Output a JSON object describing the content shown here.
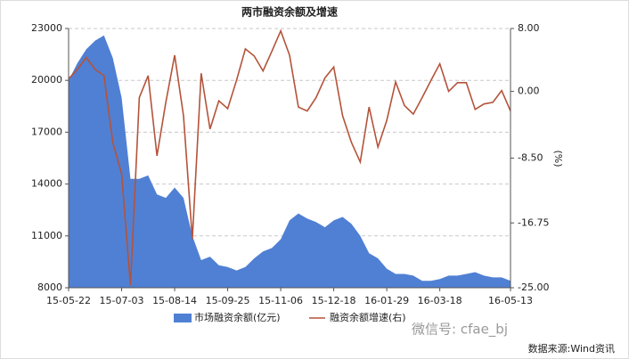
{
  "chart_data": {
    "type": "area-line",
    "title": "两市融资余额及增速",
    "y2label": "(%)",
    "categories": [
      "15-05-22",
      null,
      null,
      null,
      null,
      null,
      "15-07-03",
      null,
      null,
      null,
      null,
      null,
      "15-08-14",
      null,
      null,
      null,
      null,
      null,
      "15-09-25",
      null,
      null,
      null,
      null,
      null,
      "15-11-06",
      null,
      null,
      null,
      null,
      null,
      "15-12-18",
      null,
      null,
      null,
      null,
      null,
      "16-01-29",
      null,
      null,
      null,
      null,
      null,
      "16-03-18",
      null,
      null,
      null,
      null,
      null,
      null,
      null,
      "16-05-13"
    ],
    "series": [
      {
        "name": "市场融资余额(亿元)",
        "color": "#5080d4",
        "values": [
          20000,
          21000,
          21800,
          22300,
          22600,
          21300,
          19000,
          14300,
          14300,
          14500,
          13400,
          13200,
          13800,
          13200,
          11000,
          9600,
          9800,
          9300,
          9200,
          9000,
          9200,
          9700,
          10100,
          10300,
          10800,
          11900,
          12300,
          12000,
          11800,
          11500,
          11900,
          12100,
          11700,
          11000,
          10000,
          9700,
          9100,
          8800,
          8800,
          8700,
          8400,
          8400,
          8500,
          8700,
          8700,
          8800,
          8900,
          8700,
          8600,
          8600,
          8400
        ]
      },
      {
        "name": "融资余额增速(右)",
        "color": "#b4533a",
        "axis": "y2",
        "values": [
          1.6,
          2.8,
          4.3,
          2.8,
          2.0,
          -6.5,
          -10.5,
          -24.7,
          -0.8,
          2.0,
          -8.2,
          -1.4,
          4.6,
          -3.1,
          -18.8,
          2.3,
          -4.8,
          -1.2,
          -2.2,
          1.4,
          5.4,
          4.5,
          2.6,
          5.1,
          7.7,
          4.6,
          -2.0,
          -2.5,
          -0.8,
          1.7,
          3.1,
          -3.1,
          -6.5,
          -9.0,
          -2.0,
          -7.1,
          -3.7,
          1.2,
          -1.8,
          -2.9,
          -0.8,
          1.4,
          3.5,
          0.0,
          1.1,
          1.1,
          -2.3,
          -1.6,
          -1.4,
          0.1,
          -2.5
        ]
      }
    ],
    "ylim": [
      8000,
      23000
    ],
    "yticks": [
      8000,
      11000,
      14000,
      17000,
      20000,
      23000
    ],
    "y2lim": [
      -25,
      8
    ],
    "y2ticks": [
      {
        "value": 8,
        "label": "8.00"
      },
      {
        "value": 0,
        "label": "0.00"
      },
      {
        "value": -8.5,
        "label": "-8.50"
      },
      {
        "value": -16.75,
        "label": "-16.75"
      },
      {
        "value": -25,
        "label": "-25.00"
      }
    ],
    "grid": true,
    "legend": "bottom",
    "watermark": "微信号: cfae_bj",
    "source": "数据来源:Wind资讯"
  }
}
